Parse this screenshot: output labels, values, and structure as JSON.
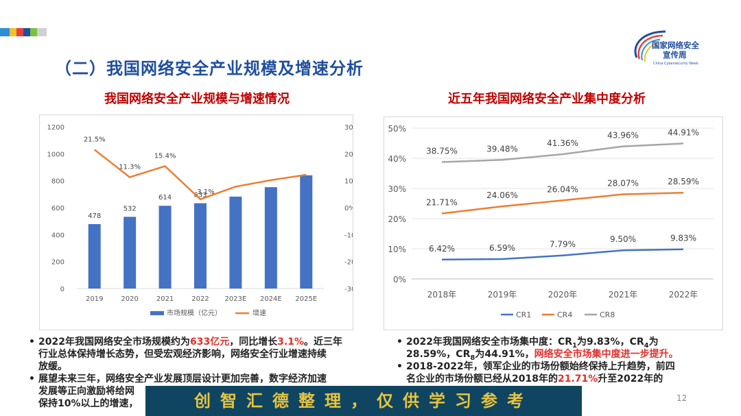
{
  "colors": {
    "title_blue": "#1f4e9e",
    "chart_title_red": "#c00000",
    "accent_red": "#e0302a",
    "bar_blue": "#4472c4",
    "line_orange": "#ed7d31",
    "line_gray": "#a5a5a5",
    "banner_bg": "#0f4560",
    "banner_text": "#e8c440"
  },
  "deco_colors": [
    "#2e8fd6",
    "#f2c12e",
    "#e8413c",
    "#1f4e9e",
    "#7bc043",
    "#d0d0d0"
  ],
  "logo": {
    "line1": "国家网络安全",
    "line2": "宣传周",
    "sub": "China Cybersecurity Week",
    "icon": "cyber-week-logo"
  },
  "heading": "（二）我国网络安全产业规模及增速分析",
  "left_chart_title": "我国网络安全产业规模与增速情况",
  "right_chart_title": "近五年我国网络安全产业集中度分析",
  "chart_data": [
    {
      "type": "bar",
      "categories": [
        "2019",
        "2020",
        "2021",
        "2022",
        "2023E",
        "2024E",
        "2025E"
      ],
      "series": [
        {
          "name": "市场规模（亿元）",
          "type": "bar",
          "axis": "left",
          "values": [
            478,
            532,
            614,
            633,
            682,
            752,
            840
          ],
          "labels": [
            "478",
            "532",
            "614",
            "633",
            null,
            null,
            null
          ]
        },
        {
          "name": "增速",
          "type": "line",
          "axis": "right",
          "values": [
            21.5,
            11.3,
            15.4,
            3.1,
            7.8,
            10.2,
            12.2
          ],
          "labels": [
            "21.5%",
            "11.3%",
            "15.4%",
            "3.1%",
            null,
            null,
            null
          ]
        }
      ],
      "yticks_left": [
        "0",
        "200",
        "400",
        "600",
        "800",
        "1000",
        "1200"
      ],
      "ylim_left": [
        0,
        1200
      ],
      "yticks_right": [
        "-30%",
        "-20%",
        "-10%",
        "0%",
        "10%",
        "20%",
        "30%"
      ],
      "ylim_right": [
        -30,
        30
      ],
      "grid": false,
      "legend_position": "bottom"
    },
    {
      "type": "line",
      "categories": [
        "2018年",
        "2019年",
        "2020年",
        "2021年",
        "2022年"
      ],
      "series": [
        {
          "name": "CR1",
          "values": [
            6.42,
            6.59,
            7.79,
            9.5,
            9.83
          ],
          "labels": [
            "6.42%",
            "6.59%",
            "7.79%",
            "9.50%",
            "9.83%"
          ]
        },
        {
          "name": "CR4",
          "values": [
            21.71,
            24.06,
            26.04,
            28.07,
            28.59
          ],
          "labels": [
            "21.71%",
            "24.06%",
            "26.04%",
            "28.07%",
            "28.59%"
          ]
        },
        {
          "name": "CR8",
          "values": [
            38.75,
            39.48,
            41.36,
            43.96,
            44.91
          ],
          "labels": [
            "38.75%",
            "39.48%",
            "41.36%",
            "43.96%",
            "44.91%"
          ]
        }
      ],
      "yticks": [
        "0%",
        "10%",
        "20%",
        "30%",
        "40%",
        "50%"
      ],
      "ylim": [
        0,
        50
      ],
      "grid": true,
      "legend_position": "bottom"
    }
  ],
  "left_bullets": [
    {
      "parts": [
        {
          "t": "2022年我国网络安全市场规模约为"
        },
        {
          "t": "633亿元",
          "red": true
        },
        {
          "t": "，同比增长"
        },
        {
          "t": "3.1%",
          "red": true
        },
        {
          "t": "。近三年"
        }
      ]
    },
    {
      "parts": [
        {
          "t": "行业总体保持增长态势，但受宏观经济影响，网络安全行业增速持续"
        }
      ],
      "cont": true
    },
    {
      "parts": [
        {
          "t": "放缓。"
        }
      ],
      "cont": true
    },
    {
      "parts": [
        {
          "t": "展望未来三年，网络安全产业发展顶层设计更加完善，数字经济加速"
        }
      ]
    },
    {
      "parts": [
        {
          "t": "发展等正向激励将给网"
        }
      ],
      "cont": true
    },
    {
      "parts": [
        {
          "t": "保持10%以上的增速，"
        }
      ],
      "cont": true
    }
  ],
  "right_bullets": [
    {
      "parts": [
        {
          "t": "2022年我国网络安全市场集中度：CR"
        },
        {
          "t": "1",
          "sub": true
        },
        {
          "t": "为9.83%，CR"
        },
        {
          "t": "4",
          "sub": true
        },
        {
          "t": "为"
        }
      ]
    },
    {
      "parts": [
        {
          "t": "28.59%，CR"
        },
        {
          "t": "8",
          "sub": true
        },
        {
          "t": "为44.91%，"
        },
        {
          "t": "网络安全市场集中度进一步提升。",
          "red": true
        }
      ],
      "cont": true
    },
    {
      "parts": [
        {
          "t": "2018-2022年，领军企业的市场份额始终保持上升趋势，前四"
        }
      ]
    },
    {
      "parts": [
        {
          "t": "名企业的市场份额已经从2018年的"
        },
        {
          "t": "21.71%",
          "red": true
        },
        {
          "t": "升至2022年的"
        }
      ],
      "cont": true
    }
  ],
  "banner": "创智汇德整理，仅供学习参考",
  "page_number": "12"
}
